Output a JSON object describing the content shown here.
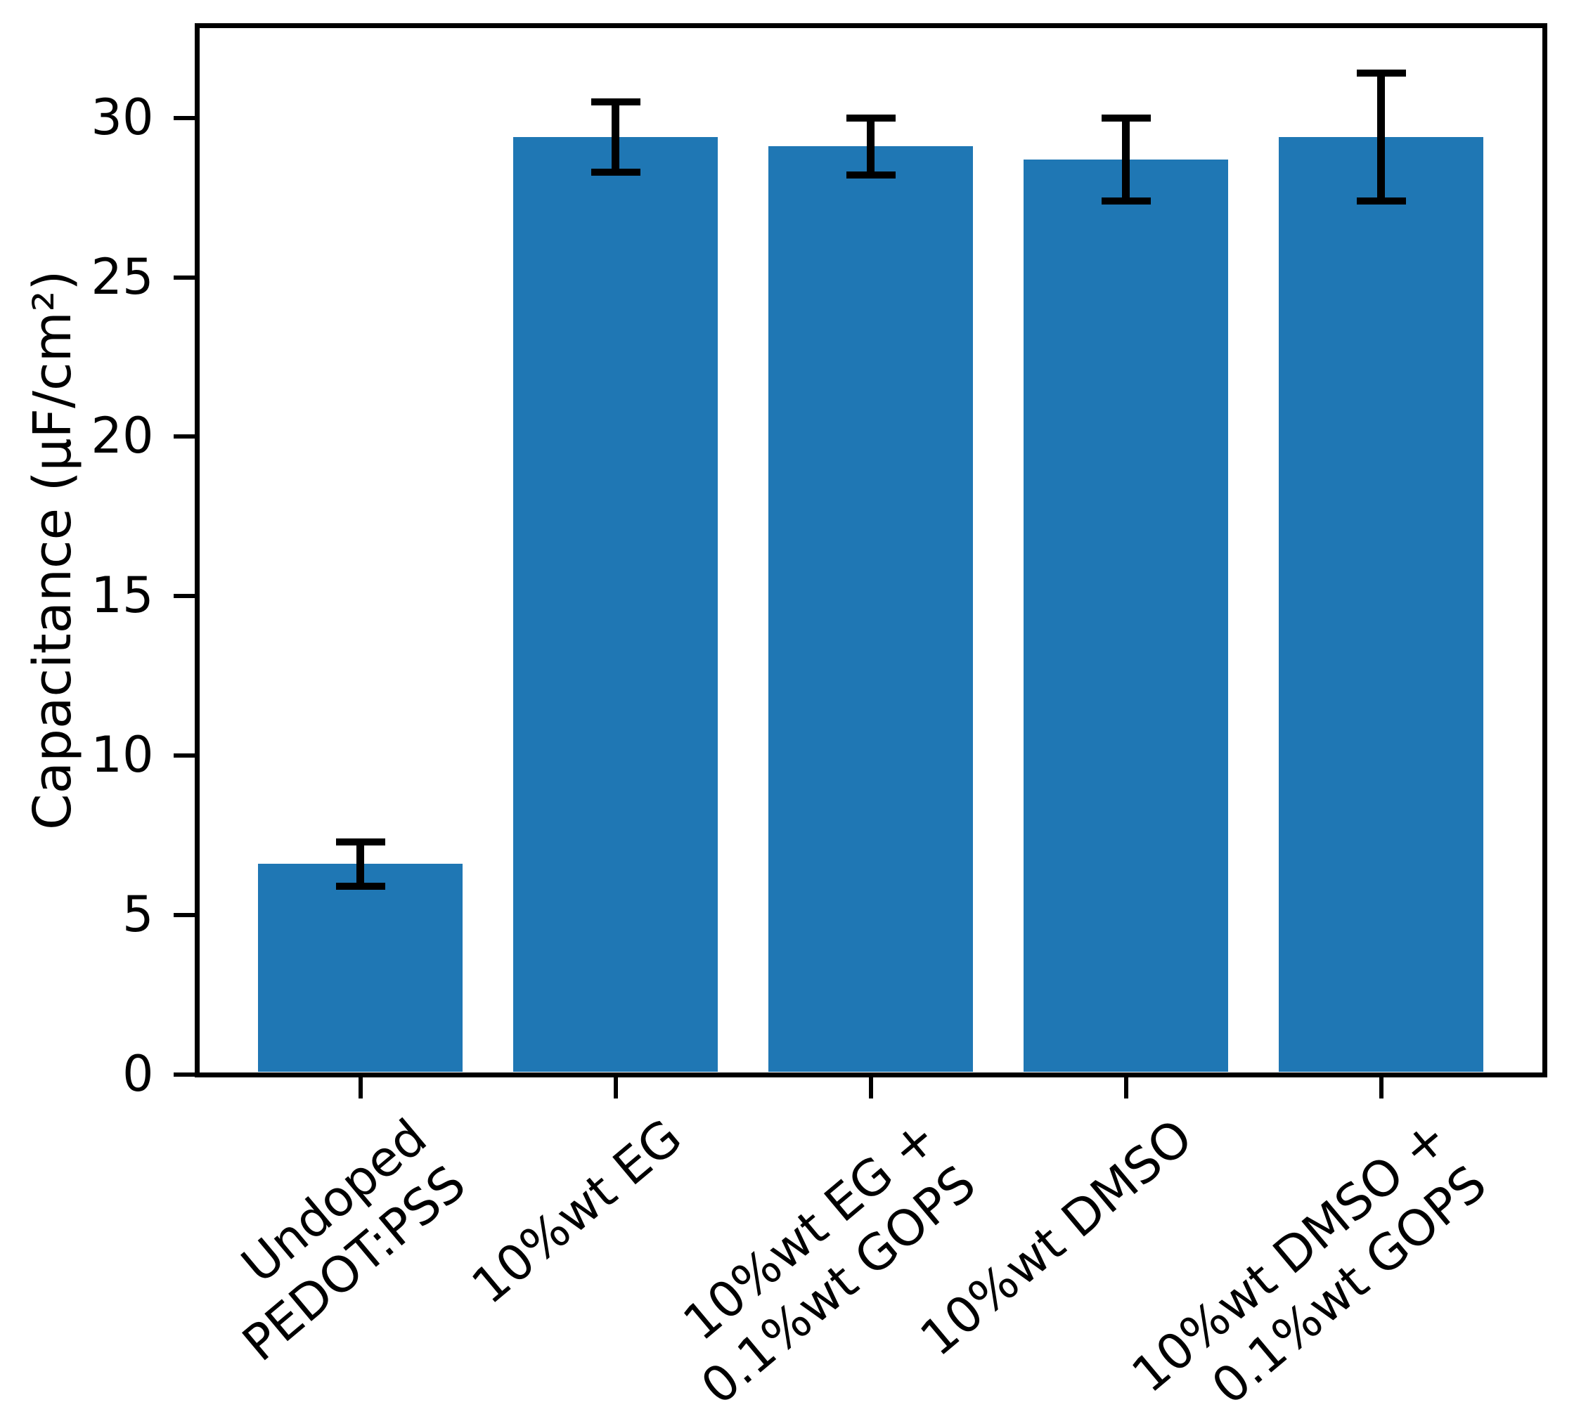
{
  "chart_data": {
    "type": "bar",
    "title": "",
    "xlabel": "",
    "ylabel": "Capacitance (μF/cm²)",
    "categories": [
      "Undoped\nPEDOT:PSS",
      "10%wt EG",
      "10%wt EG +\n0.1%wt GOPS",
      "10%wt DMSO",
      "10%wt DMSO +\n0.1%wt GOPS"
    ],
    "category_lines": [
      [
        "Undoped",
        "PEDOT:PSS"
      ],
      [
        "10%wt EG"
      ],
      [
        "10%wt EG +",
        "0.1%wt GOPS"
      ],
      [
        "10%wt DMSO"
      ],
      [
        "10%wt DMSO +",
        "0.1%wt GOPS"
      ]
    ],
    "values": [
      6.6,
      29.4,
      29.1,
      28.7,
      29.4
    ],
    "errors": [
      0.7,
      1.1,
      0.9,
      1.3,
      2.0
    ],
    "yticks": [
      0,
      5,
      10,
      15,
      20,
      25,
      30
    ],
    "ylim": [
      0,
      32.9
    ],
    "grid": false,
    "legend": null,
    "bar_color": "#1f77b4",
    "error_color": "#000000",
    "axis_color": "#000000",
    "background_color": "#ffffff"
  }
}
